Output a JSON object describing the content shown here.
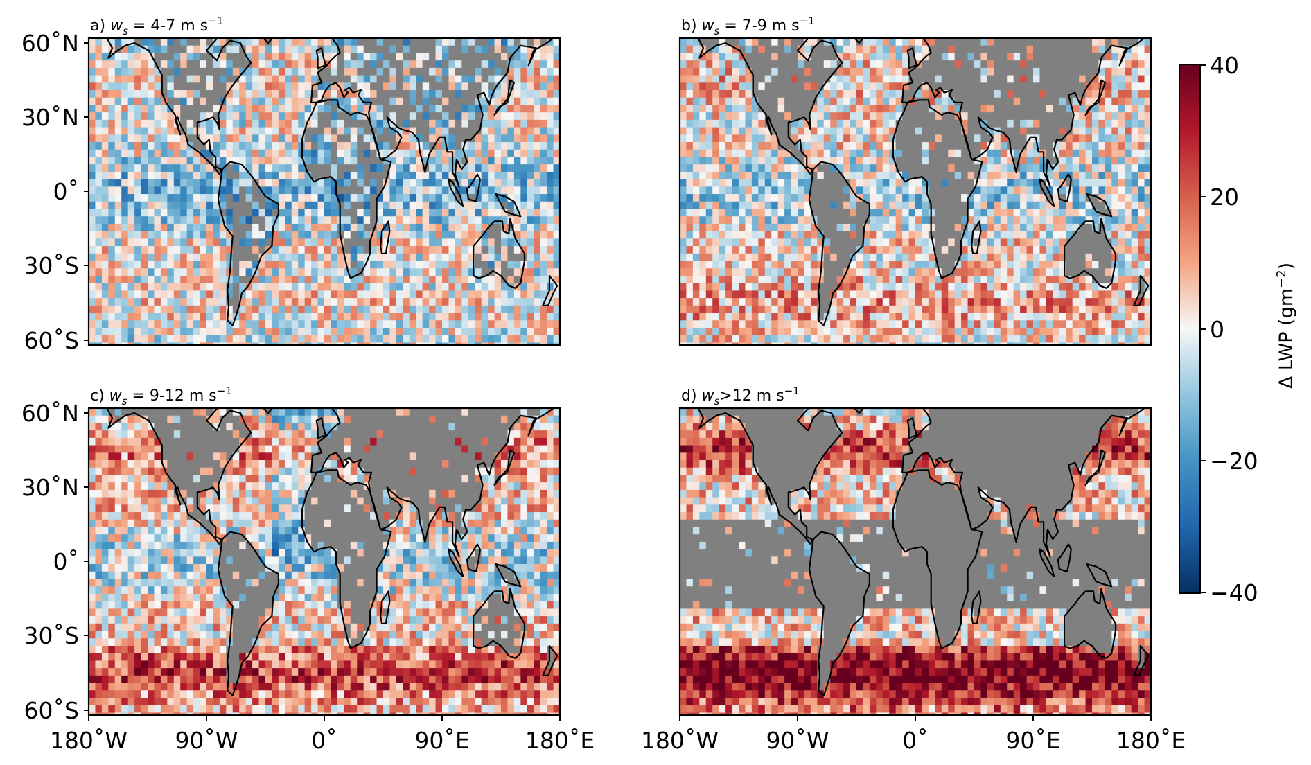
{
  "chart_data": {
    "type": "heatmap",
    "colormap": "RdBu_r",
    "colorbar": {
      "label_prefix": "Δ LWP (gm",
      "label_exp": "−2",
      "label_suffix": ")",
      "min": -40,
      "max": 40,
      "ticks": [
        {
          "value": 40,
          "label": "40"
        },
        {
          "value": 20,
          "label": "20"
        },
        {
          "value": 0,
          "label": "0"
        },
        {
          "value": -20,
          "label": "−20"
        },
        {
          "value": -40,
          "label": "−40"
        }
      ],
      "colors": {
        "low": "#053061",
        "mid": "#f7f7f7",
        "high": "#67001f"
      }
    },
    "land_color": "#808080",
    "x_ticks": [
      {
        "value": -180,
        "label": "180˚W"
      },
      {
        "value": -90,
        "label": "90˚W"
      },
      {
        "value": 0,
        "label": "0˚"
      },
      {
        "value": 90,
        "label": "90˚E"
      },
      {
        "value": 180,
        "label": "180˚E"
      }
    ],
    "y_ticks": [
      {
        "value": 60,
        "label": "60˚N"
      },
      {
        "value": 30,
        "label": "30˚N"
      },
      {
        "value": 0,
        "label": "0˚"
      },
      {
        "value": -30,
        "label": "30˚S"
      },
      {
        "value": -60,
        "label": "60˚S"
      }
    ],
    "xlim": [
      -180,
      180
    ],
    "ylim": [
      -62,
      62
    ],
    "panels": [
      {
        "id": "a",
        "title_prefix": "a) ",
        "title_var": "w",
        "title_sub": "s",
        "title_rel": " = ",
        "title_value": "4-7",
        "title_unit": " m s",
        "title_unit_exp": "−1",
        "land_masked": "partial"
      },
      {
        "id": "b",
        "title_prefix": "b) ",
        "title_var": "w",
        "title_sub": "s",
        "title_rel": " = ",
        "title_value": "7-9",
        "title_unit": " m s",
        "title_unit_exp": "−1",
        "land_masked": "most"
      },
      {
        "id": "c",
        "title_prefix": "c) ",
        "title_var": "w",
        "title_sub": "s",
        "title_rel": " = ",
        "title_value": "9-12",
        "title_unit": " m s",
        "title_unit_exp": "−1",
        "land_masked": "most"
      },
      {
        "id": "d",
        "title_prefix": "d) ",
        "title_var": "w",
        "title_sub": "s",
        "title_rel": ">",
        "title_value": "12",
        "title_unit": " m s",
        "title_unit_exp": "−1",
        "land_masked": "all, plus tropical ocean band"
      }
    ]
  }
}
